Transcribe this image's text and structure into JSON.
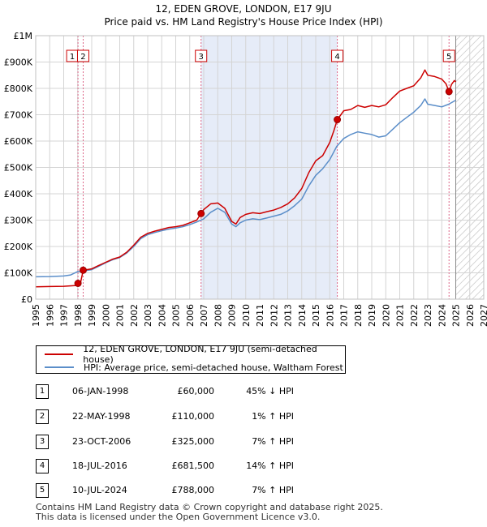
{
  "chart_data": {
    "type": "line",
    "title": "12, EDEN GROVE, LONDON, E17 9JU",
    "subtitle": "Price paid vs. HM Land Registry's House Price Index (HPI)",
    "xlim": [
      1995,
      2027
    ],
    "ylim": [
      0,
      1000000
    ],
    "y_ticks": [
      {
        "value": 0,
        "label": "£0"
      },
      {
        "value": 100000,
        "label": "£100K"
      },
      {
        "value": 200000,
        "label": "£200K"
      },
      {
        "value": 300000,
        "label": "£300K"
      },
      {
        "value": 400000,
        "label": "£400K"
      },
      {
        "value": 500000,
        "label": "£500K"
      },
      {
        "value": 600000,
        "label": "£600K"
      },
      {
        "value": 700000,
        "label": "£700K"
      },
      {
        "value": 800000,
        "label": "£800K"
      },
      {
        "value": 900000,
        "label": "£900K"
      },
      {
        "value": 1000000,
        "label": "£1M"
      }
    ],
    "x_ticks": [
      "1995",
      "1996",
      "1997",
      "1998",
      "1999",
      "2000",
      "2001",
      "2002",
      "2003",
      "2004",
      "2005",
      "2006",
      "2007",
      "2008",
      "2009",
      "2010",
      "2011",
      "2012",
      "2013",
      "2014",
      "2015",
      "2016",
      "2017",
      "2018",
      "2019",
      "2020",
      "2021",
      "2022",
      "2023",
      "2024",
      "2025",
      "2026",
      "2027"
    ],
    "grid": true,
    "shaded_span": [
      2006.81,
      2016.54
    ],
    "future_hatch_from": 2025.0,
    "colors": {
      "property": "#cc0000",
      "hpi": "#5b8ec9",
      "marker_line": "#dd6688"
    },
    "series": [
      {
        "name": "12, EDEN GROVE, LONDON, E17 9JU (semi-detached house)",
        "color": "#cc0000",
        "x": [
          1995.0,
          1996.0,
          1997.0,
          1997.9,
          1998.02,
          1998.2,
          1998.39,
          1999.0,
          1999.5,
          2000.0,
          2000.5,
          2001.0,
          2001.5,
          2002.0,
          2002.5,
          2003.0,
          2003.5,
          2004.0,
          2004.5,
          2005.0,
          2005.5,
          2006.0,
          2006.5,
          2006.81,
          2007.0,
          2007.5,
          2008.0,
          2008.5,
          2009.0,
          2009.3,
          2009.6,
          2010.0,
          2010.5,
          2011.0,
          2011.5,
          2012.0,
          2012.5,
          2013.0,
          2013.5,
          2014.0,
          2014.5,
          2015.0,
          2015.5,
          2016.0,
          2016.3,
          2016.54,
          2016.8,
          2017.0,
          2017.5,
          2018.0,
          2018.5,
          2019.0,
          2019.5,
          2020.0,
          2020.5,
          2021.0,
          2021.5,
          2022.0,
          2022.5,
          2022.8,
          2023.0,
          2023.5,
          2024.0,
          2024.3,
          2024.52,
          2024.7,
          2024.9,
          2025.0
        ],
        "y": [
          47000,
          48000,
          49000,
          52000,
          60000,
          62000,
          110000,
          115000,
          128000,
          140000,
          152000,
          160000,
          178000,
          205000,
          235000,
          250000,
          258000,
          265000,
          272000,
          275000,
          280000,
          290000,
          300000,
          325000,
          340000,
          362000,
          365000,
          345000,
          295000,
          285000,
          310000,
          322000,
          328000,
          325000,
          332000,
          338000,
          348000,
          362000,
          385000,
          420000,
          480000,
          525000,
          545000,
          595000,
          640000,
          681500,
          700000,
          715000,
          720000,
          735000,
          728000,
          735000,
          730000,
          738000,
          765000,
          790000,
          800000,
          810000,
          840000,
          870000,
          850000,
          845000,
          835000,
          818000,
          788000,
          815000,
          830000,
          825000
        ]
      },
      {
        "name": "HPI: Average price, semi-detached house, Waltham Forest",
        "color": "#5b8ec9",
        "x": [
          1995.0,
          1996.0,
          1997.0,
          1997.5,
          1998.0,
          1998.5,
          1999.0,
          1999.5,
          2000.0,
          2000.5,
          2001.0,
          2001.5,
          2002.0,
          2002.5,
          2003.0,
          2003.5,
          2004.0,
          2004.5,
          2005.0,
          2005.5,
          2006.0,
          2006.5,
          2007.0,
          2007.5,
          2008.0,
          2008.5,
          2009.0,
          2009.3,
          2009.6,
          2010.0,
          2010.5,
          2011.0,
          2011.5,
          2012.0,
          2012.5,
          2013.0,
          2013.5,
          2014.0,
          2014.5,
          2015.0,
          2015.5,
          2016.0,
          2016.5,
          2017.0,
          2017.5,
          2018.0,
          2018.5,
          2019.0,
          2019.5,
          2020.0,
          2020.5,
          2021.0,
          2021.5,
          2022.0,
          2022.5,
          2022.8,
          2023.0,
          2023.5,
          2024.0,
          2024.5,
          2025.0
        ],
        "y": [
          85000,
          86000,
          88000,
          92000,
          105000,
          108000,
          112000,
          125000,
          138000,
          150000,
          158000,
          175000,
          200000,
          230000,
          245000,
          253000,
          260000,
          266000,
          270000,
          275000,
          283000,
          293000,
          305000,
          330000,
          345000,
          330000,
          285000,
          275000,
          290000,
          300000,
          305000,
          302000,
          308000,
          315000,
          322000,
          335000,
          355000,
          380000,
          430000,
          470000,
          495000,
          530000,
          580000,
          610000,
          625000,
          635000,
          630000,
          625000,
          615000,
          620000,
          645000,
          670000,
          690000,
          710000,
          735000,
          760000,
          740000,
          735000,
          730000,
          740000,
          755000
        ]
      }
    ],
    "sales": [
      {
        "id": "1",
        "x": 1998.02,
        "y": 60000
      },
      {
        "id": "2",
        "x": 1998.39,
        "y": 110000
      },
      {
        "id": "3",
        "x": 2006.81,
        "y": 325000
      },
      {
        "id": "4",
        "x": 2016.54,
        "y": 681500
      },
      {
        "id": "5",
        "x": 2024.52,
        "y": 788000
      }
    ]
  },
  "legend": {
    "property": "12, EDEN GROVE, LONDON, E17 9JU (semi-detached house)",
    "hpi": "HPI: Average price, semi-detached house, Waltham Forest"
  },
  "transactions": [
    {
      "num": "1",
      "date": "06-JAN-1998",
      "price": "£60,000",
      "hpi": "45% ↓ HPI"
    },
    {
      "num": "2",
      "date": "22-MAY-1998",
      "price": "£110,000",
      "hpi": "1% ↑ HPI"
    },
    {
      "num": "3",
      "date": "23-OCT-2006",
      "price": "£325,000",
      "hpi": "7% ↑ HPI"
    },
    {
      "num": "4",
      "date": "18-JUL-2016",
      "price": "£681,500",
      "hpi": "14% ↑ HPI"
    },
    {
      "num": "5",
      "date": "10-JUL-2024",
      "price": "£788,000",
      "hpi": "7% ↑ HPI"
    }
  ],
  "footer": {
    "line1": "Contains HM Land Registry data © Crown copyright and database right 2025.",
    "line2": "This data is licensed under the Open Government Licence v3.0."
  }
}
